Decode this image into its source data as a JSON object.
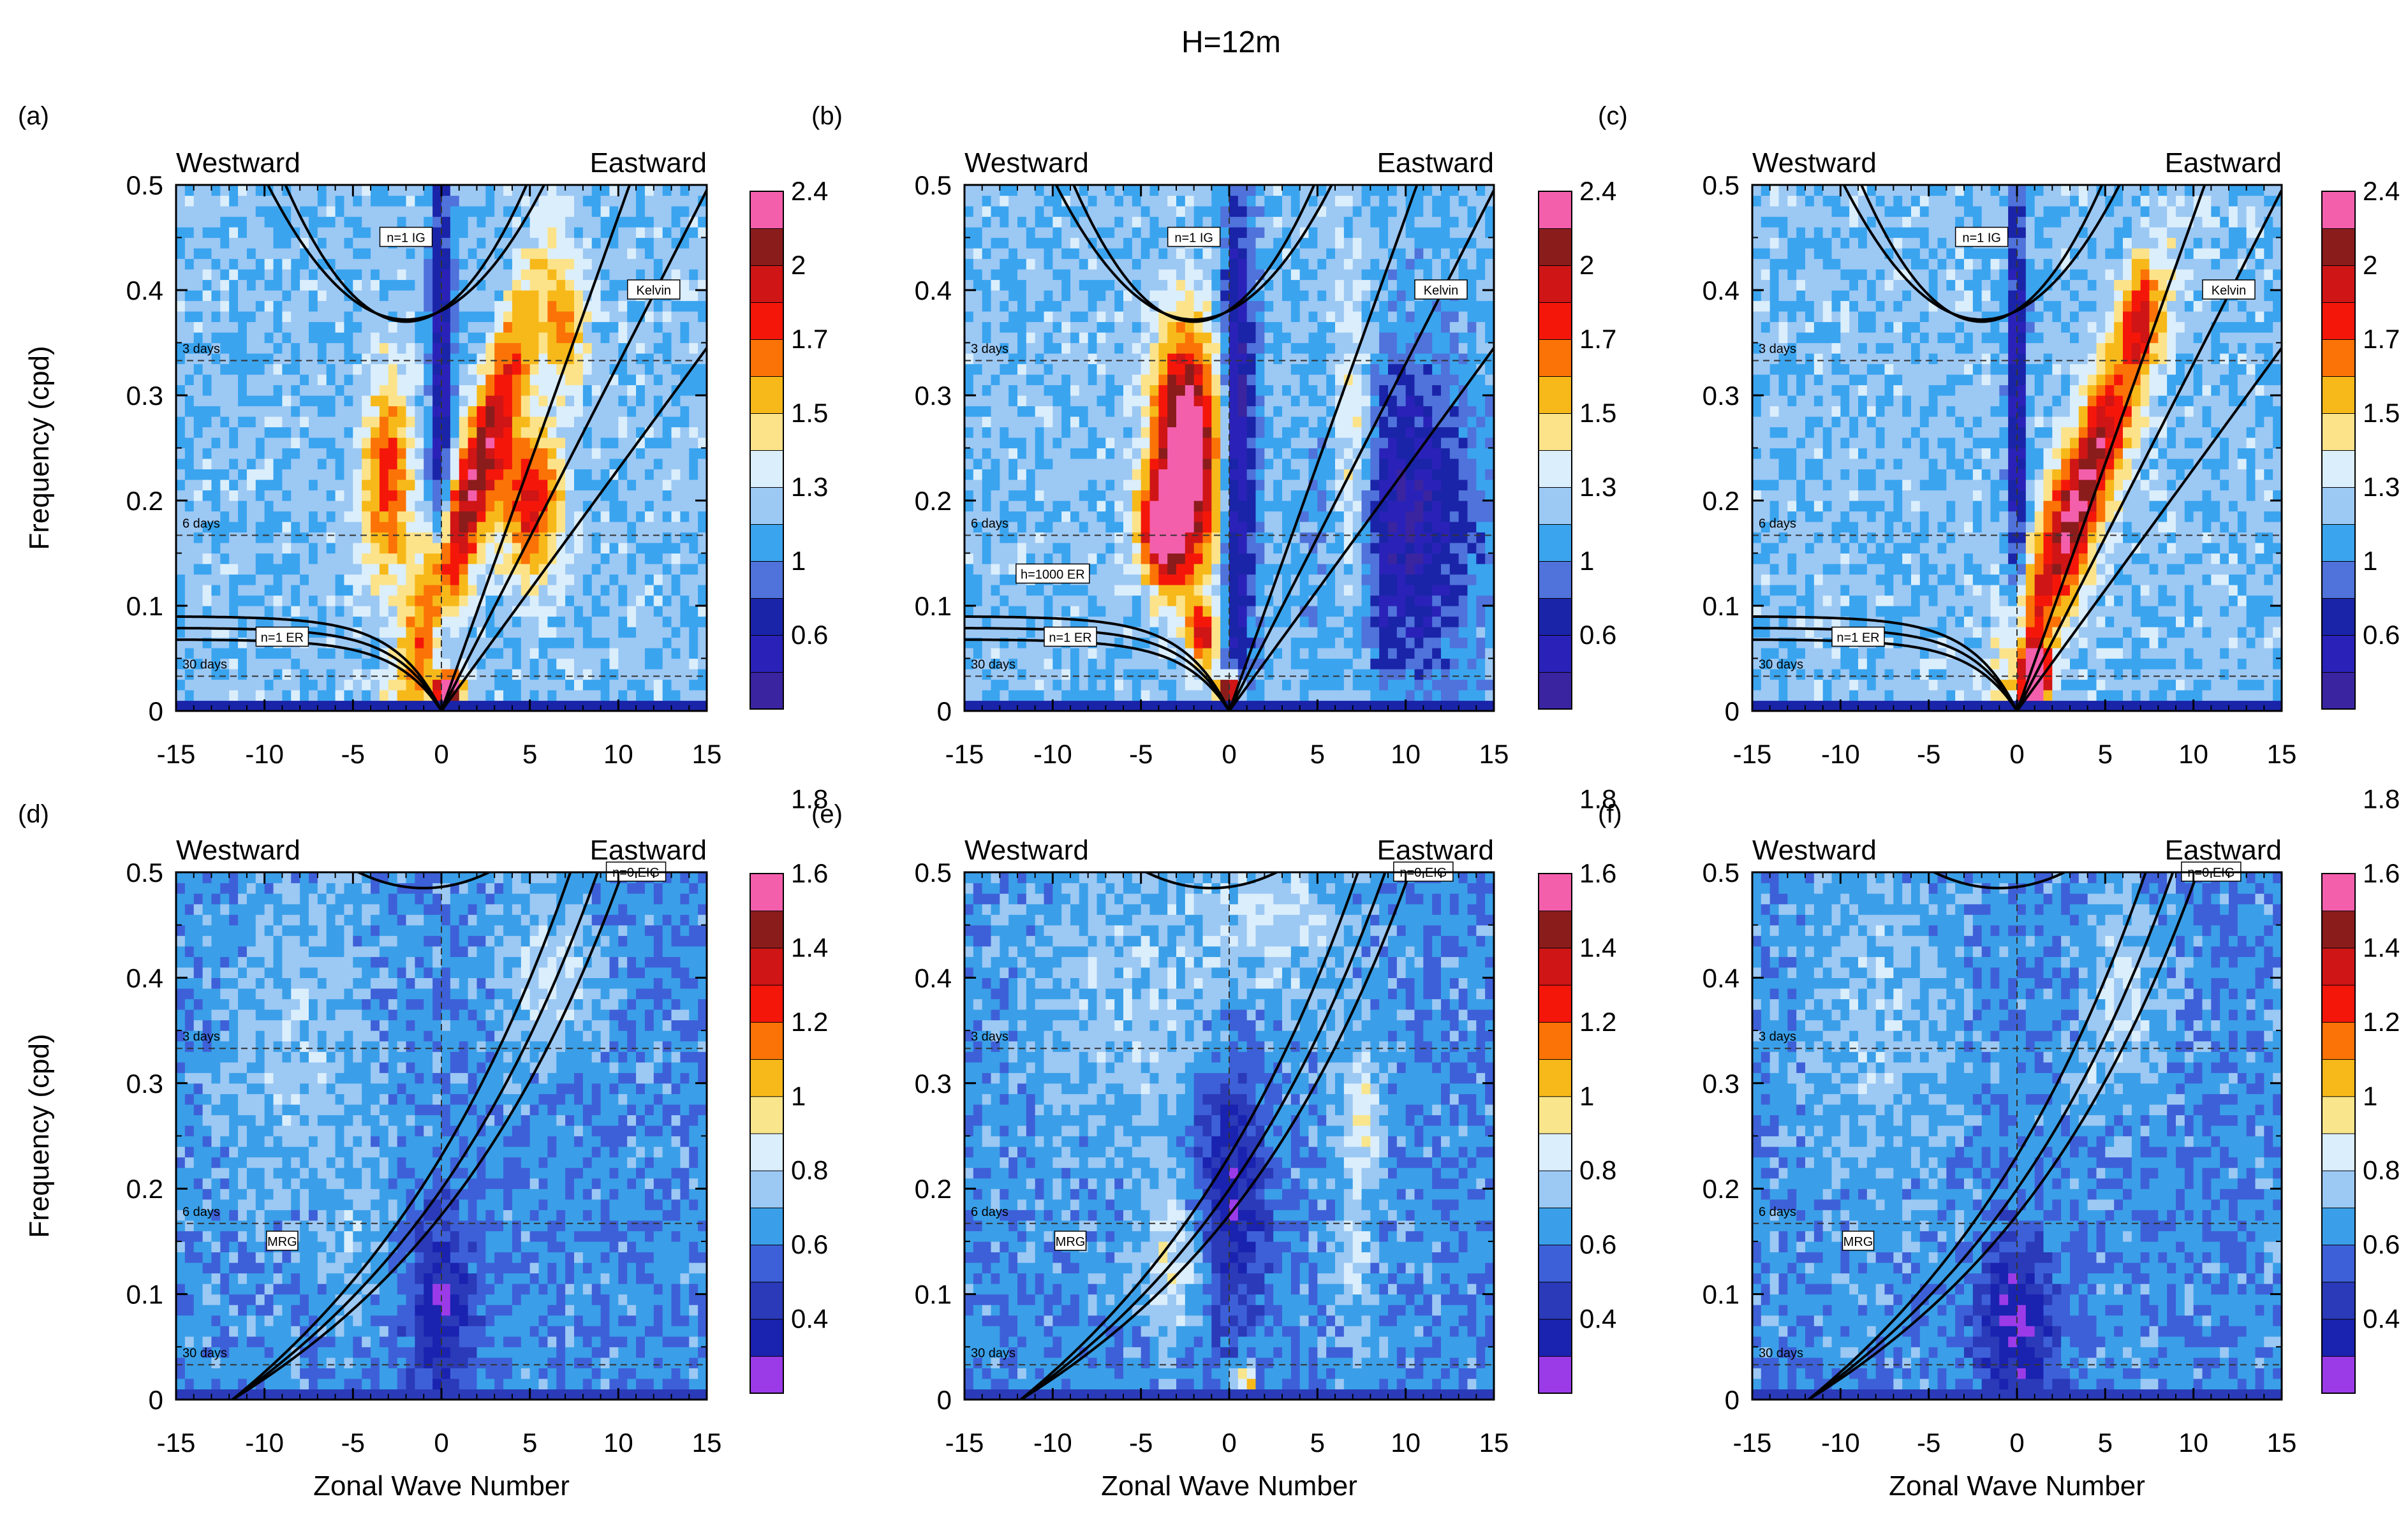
{
  "title": "H=12m",
  "colors": {
    "background": "#4f72db",
    "curve": "#000000",
    "scale_top": [
      "#3a24a0",
      "#2a22b8",
      "#1a24a8",
      "#4f72db",
      "#3aa4ef",
      "#9cc8f4",
      "#dbeefc",
      "#fce38a",
      "#f7b91a",
      "#fb7306",
      "#f5160a",
      "#cf1515",
      "#8b1c1c",
      "#f45fac"
    ],
    "scale_bottom": [
      "#9b3be8",
      "#1a22b0",
      "#2a3ab8",
      "#3d60d8",
      "#3a9fe8",
      "#9cc8f4",
      "#dbeefc",
      "#f8e58c",
      "#f7b91a",
      "#fb7306",
      "#f5160a",
      "#cf1515",
      "#8b1c1c",
      "#f45fac"
    ]
  },
  "chart_data": [
    {
      "panel": "(a)",
      "type": "heatmap",
      "xlabel": "",
      "ylabel": "Frequency (cpd)",
      "x_ticks": [
        "-15",
        "-10",
        "-5",
        "0",
        "5",
        "10",
        "15"
      ],
      "y_ticks": [
        "0",
        "0.1",
        "0.2",
        "0.3",
        "0.4",
        "0.5"
      ],
      "xlim": [
        -15,
        15
      ],
      "ylim": [
        0,
        0.5
      ],
      "direction_labels": [
        "Westward",
        "Eastward"
      ],
      "period_lines": [
        {
          "label": "3 days",
          "frequency": 0.333
        },
        {
          "label": "6 days",
          "frequency": 0.167
        },
        {
          "label": "30 days",
          "frequency": 0.033
        }
      ],
      "curve_labels": [
        {
          "text": "n=1 IG",
          "k": -2,
          "freq": 0.45
        },
        {
          "text": "Kelvin",
          "k": 12,
          "freq": 0.4
        },
        {
          "text": "n=1 ER",
          "k": -9,
          "freq": 0.07
        }
      ],
      "curve_set": "sym",
      "colorbar_labels": [
        "0.6",
        "1",
        "1.3",
        "1.5",
        "1.7",
        "2",
        "2.4"
      ],
      "colorbar_levels": 14,
      "scale": "top",
      "features": [
        {
          "k": 1.5,
          "f": 0.2,
          "sk": 1,
          "sf": 0.14,
          "amp": 1.5,
          "tilt": 18.0
        },
        {
          "k": 5,
          "f": 0.2,
          "sk": 1.2,
          "sf": 0.05,
          "amp": 1.2,
          "tilt": 0
        },
        {
          "k": -3,
          "f": 0.22,
          "sk": 1,
          "sf": 0.07,
          "amp": 1.0,
          "tilt": 0
        },
        {
          "k": 0.3,
          "f": 0.02,
          "sk": 0.6,
          "sf": 0.012,
          "amp": 2.2,
          "tilt": 0
        },
        {
          "k": 7,
          "f": 0.36,
          "sk": 0.8,
          "sf": 0.04,
          "amp": 0.8,
          "tilt": 0
        },
        {
          "k": 0,
          "f": 0.28,
          "sk": 0.5,
          "sf": 0.2,
          "amp": -0.8,
          "tilt": 0
        }
      ]
    },
    {
      "panel": "(b)",
      "type": "heatmap",
      "xlabel": "",
      "ylabel": "",
      "x_ticks": [
        "-15",
        "-10",
        "-5",
        "0",
        "5",
        "10",
        "15"
      ],
      "y_ticks": [
        "0",
        "0.1",
        "0.2",
        "0.3",
        "0.4",
        "0.5"
      ],
      "xlim": [
        -15,
        15
      ],
      "ylim": [
        0,
        0.5
      ],
      "direction_labels": [
        "Westward",
        "Eastward"
      ],
      "period_lines": [
        {
          "label": "3 days",
          "frequency": 0.333
        },
        {
          "label": "6 days",
          "frequency": 0.167
        },
        {
          "label": "30 days",
          "frequency": 0.033
        }
      ],
      "curve_labels": [
        {
          "text": "n=1 IG",
          "k": -2,
          "freq": 0.45
        },
        {
          "text": "Kelvin",
          "k": 12,
          "freq": 0.4
        },
        {
          "text": "h=1000 ER",
          "k": -10,
          "freq": 0.13
        },
        {
          "text": "n=1 ER",
          "k": -9,
          "freq": 0.07
        }
      ],
      "curve_set": "sym",
      "colorbar_labels": [
        "0.6",
        "1",
        "1.3",
        "1.5",
        "1.7",
        "2",
        "2.4"
      ],
      "colorbar_levels": 14,
      "scale": "top",
      "features": [
        {
          "k": -2.5,
          "f": 0.24,
          "sk": 1.3,
          "sf": 0.08,
          "amp": 2.2,
          "tilt": 0
        },
        {
          "k": -4,
          "f": 0.17,
          "sk": 0.8,
          "sf": 0.03,
          "amp": 1.3,
          "tilt": 0
        },
        {
          "k": 7,
          "f": 0.23,
          "sk": 0.8,
          "sf": 0.12,
          "amp": 0.7,
          "tilt": 0
        },
        {
          "k": 0,
          "f": 0.02,
          "sk": 0.5,
          "sf": 0.01,
          "amp": 2.0,
          "tilt": 0
        },
        {
          "k": -1.5,
          "f": 0.07,
          "sk": 0.5,
          "sf": 0.02,
          "amp": 1.2,
          "tilt": 0
        },
        {
          "k": 0.5,
          "f": 0.25,
          "sk": 0.7,
          "sf": 0.2,
          "amp": -0.9,
          "tilt": 0
        },
        {
          "k": 10,
          "f": 0.18,
          "sk": 3,
          "sf": 0.12,
          "amp": -0.8,
          "tilt": 0
        }
      ]
    },
    {
      "panel": "(c)",
      "type": "heatmap",
      "xlabel": "",
      "ylabel": "",
      "x_ticks": [
        "-15",
        "-10",
        "-5",
        "0",
        "5",
        "10",
        "15"
      ],
      "y_ticks": [
        "0",
        "0.1",
        "0.2",
        "0.3",
        "0.4",
        "0.5"
      ],
      "xlim": [
        -15,
        15
      ],
      "ylim": [
        0,
        0.5
      ],
      "direction_labels": [
        "Westward",
        "Eastward"
      ],
      "period_lines": [
        {
          "label": "3 days",
          "frequency": 0.333
        },
        {
          "label": "6 days",
          "frequency": 0.167
        },
        {
          "label": "30 days",
          "frequency": 0.033
        }
      ],
      "curve_labels": [
        {
          "text": "n=1 IG",
          "k": -2,
          "freq": 0.45
        },
        {
          "text": "Kelvin",
          "k": 12,
          "freq": 0.4
        },
        {
          "text": "n=1 ER",
          "k": -9,
          "freq": 0.07
        }
      ],
      "curve_set": "sym",
      "colorbar_labels": [
        "0.6",
        "1",
        "1.3",
        "1.5",
        "1.7",
        "2",
        "2.4"
      ],
      "colorbar_levels": 14,
      "scale": "top",
      "features": [
        {
          "k": 3.5,
          "f": 0.2,
          "sk": 1.2,
          "sf": 0.12,
          "amp": 1.6,
          "tilt": 20.0
        },
        {
          "k": 1,
          "f": 0.03,
          "sk": 0.6,
          "sf": 0.02,
          "amp": 2.0,
          "tilt": 0
        },
        {
          "k": 7,
          "f": 0.38,
          "sk": 0.7,
          "sf": 0.03,
          "amp": 0.8,
          "tilt": 0
        },
        {
          "k": 0,
          "f": 0.3,
          "sk": 0.4,
          "sf": 0.2,
          "amp": -0.8,
          "tilt": 0
        }
      ]
    },
    {
      "panel": "(d)",
      "type": "heatmap",
      "xlabel": "Zonal Wave Number",
      "ylabel": "Frequency (cpd)",
      "x_ticks": [
        "-15",
        "-10",
        "-5",
        "0",
        "5",
        "10",
        "15"
      ],
      "y_ticks": [
        "0",
        "0.1",
        "0.2",
        "0.3",
        "0.4",
        "0.5"
      ],
      "xlim": [
        -15,
        15
      ],
      "ylim": [
        0,
        0.5
      ],
      "direction_labels": [
        "Westward",
        "Eastward"
      ],
      "period_lines": [
        {
          "label": "3 days",
          "frequency": 0.333
        },
        {
          "label": "6 days",
          "frequency": 0.167
        },
        {
          "label": "30 days",
          "frequency": 0.033
        }
      ],
      "curve_labels": [
        {
          "text": "n=0 EIG",
          "k": 11,
          "freq": 0.5
        },
        {
          "text": "MRG",
          "k": -9,
          "freq": 0.15
        }
      ],
      "curve_set": "asym",
      "colorbar_labels": [
        "0.4",
        "0.6",
        "0.8",
        "1",
        "1.2",
        "1.4",
        "1.6",
        "1.8"
      ],
      "colorbar_levels": 14,
      "scale": "bottom",
      "features": [
        {
          "k": -8,
          "f": 0.33,
          "sk": 3,
          "sf": 0.12,
          "amp": 0.25,
          "tilt": 0
        },
        {
          "k": 6,
          "f": 0.4,
          "sk": 2,
          "sf": 0.06,
          "amp": 0.35,
          "tilt": 0
        },
        {
          "k": 0,
          "f": 0.08,
          "sk": 1.2,
          "sf": 0.07,
          "amp": -0.6,
          "tilt": 0
        },
        {
          "k": -5,
          "f": 0.15,
          "sk": 1,
          "sf": 0.05,
          "amp": 0.2,
          "tilt": 0
        }
      ]
    },
    {
      "panel": "(e)",
      "type": "heatmap",
      "xlabel": "Zonal Wave Number",
      "ylabel": "",
      "x_ticks": [
        "-15",
        "-10",
        "-5",
        "0",
        "5",
        "10",
        "15"
      ],
      "y_ticks": [
        "0",
        "0.1",
        "0.2",
        "0.3",
        "0.4",
        "0.5"
      ],
      "xlim": [
        -15,
        15
      ],
      "ylim": [
        0,
        0.5
      ],
      "direction_labels": [
        "Westward",
        "Eastward"
      ],
      "period_lines": [
        {
          "label": "3 days",
          "frequency": 0.333
        },
        {
          "label": "6 days",
          "frequency": 0.167
        },
        {
          "label": "30 days",
          "frequency": 0.033
        }
      ],
      "curve_labels": [
        {
          "text": "n=0 EIG",
          "k": 11,
          "freq": 0.5
        },
        {
          "text": "MRG",
          "k": -9,
          "freq": 0.15
        }
      ],
      "curve_set": "asym",
      "colorbar_labels": [
        "0.4",
        "0.6",
        "0.8",
        "1",
        "1.2",
        "1.4",
        "1.6",
        "1.8"
      ],
      "colorbar_levels": 14,
      "scale": "bottom",
      "features": [
        {
          "k": -3,
          "f": 0.13,
          "sk": 1.3,
          "sf": 0.05,
          "amp": 0.5,
          "tilt": 0
        },
        {
          "k": 7.5,
          "f": 0.27,
          "sk": 0.8,
          "sf": 0.05,
          "amp": 0.55,
          "tilt": 0
        },
        {
          "k": 7,
          "f": 0.14,
          "sk": 0.8,
          "sf": 0.05,
          "amp": 0.35,
          "tilt": 0
        },
        {
          "k": 0,
          "f": 0.2,
          "sk": 1.5,
          "sf": 0.09,
          "amp": -0.65,
          "tilt": 0
        },
        {
          "k": 1,
          "f": 0.02,
          "sk": 0.4,
          "sf": 0.01,
          "amp": 0.9,
          "tilt": 0
        },
        {
          "k": -5,
          "f": 0.38,
          "sk": 5,
          "sf": 0.12,
          "amp": 0.25,
          "tilt": 0
        },
        {
          "k": 3,
          "f": 0.45,
          "sk": 3,
          "sf": 0.05,
          "amp": 0.3,
          "tilt": 0
        }
      ]
    },
    {
      "panel": "(f)",
      "type": "heatmap",
      "xlabel": "Zonal Wave Number",
      "ylabel": "",
      "x_ticks": [
        "-15",
        "-10",
        "-5",
        "0",
        "5",
        "10",
        "15"
      ],
      "y_ticks": [
        "0",
        "0.1",
        "0.2",
        "0.3",
        "0.4",
        "0.5"
      ],
      "xlim": [
        -15,
        15
      ],
      "ylim": [
        0,
        0.5
      ],
      "direction_labels": [
        "Westward",
        "Eastward"
      ],
      "period_lines": [
        {
          "label": "3 days",
          "frequency": 0.333
        },
        {
          "label": "6 days",
          "frequency": 0.167
        },
        {
          "label": "30 days",
          "frequency": 0.033
        }
      ],
      "curve_labels": [
        {
          "text": "n=0 EIG",
          "k": 11,
          "freq": 0.5
        },
        {
          "text": "MRG",
          "k": -9,
          "freq": 0.15
        }
      ],
      "curve_set": "asym",
      "colorbar_labels": [
        "0.4",
        "0.6",
        "0.8",
        "1",
        "1.2",
        "1.4",
        "1.6",
        "1.8"
      ],
      "colorbar_levels": 14,
      "scale": "bottom",
      "features": [
        {
          "k": -8,
          "f": 0.35,
          "sk": 3,
          "sf": 0.12,
          "amp": 0.25,
          "tilt": 0
        },
        {
          "k": 6,
          "f": 0.38,
          "sk": 1.5,
          "sf": 0.07,
          "amp": 0.35,
          "tilt": 0
        },
        {
          "k": 0,
          "f": 0.07,
          "sk": 1.5,
          "sf": 0.06,
          "amp": -0.7,
          "tilt": 0
        },
        {
          "k": 4,
          "f": 0.3,
          "sk": 0.6,
          "sf": 0.02,
          "amp": 0.3,
          "tilt": 0
        }
      ]
    }
  ]
}
